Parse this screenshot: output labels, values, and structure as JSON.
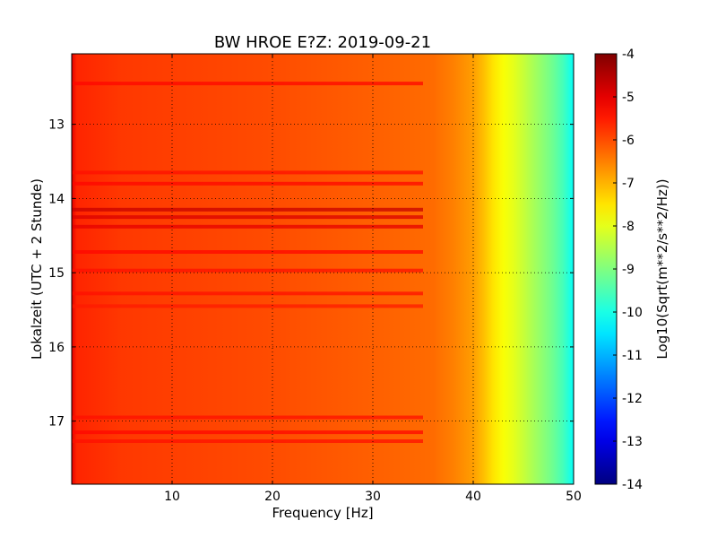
{
  "chart_data": {
    "type": "heatmap",
    "title": "BW HROE E?Z: 2019-09-21",
    "xlabel": "Frequency [Hz]",
    "ylabel": "Lokalzeit (UTC + 2 Stunde)",
    "xlim": [
      0,
      50
    ],
    "ylim": [
      12.05,
      17.85
    ],
    "y_inverted": true,
    "x_ticks": [
      10,
      20,
      30,
      40,
      50
    ],
    "y_ticks": [
      13,
      14,
      15,
      16,
      17
    ],
    "grid": true,
    "colorbar": {
      "label": "Log10(Sqrt(m**2/s**2/Hz))",
      "range": [
        -14,
        -4
      ],
      "ticks": [
        -4,
        -5,
        -6,
        -7,
        -8,
        -9,
        -10,
        -11,
        -12,
        -13,
        -14
      ],
      "colormap": "jet"
    },
    "frequency_profile": {
      "frequency": [
        0,
        0.5,
        5,
        20,
        36,
        38,
        40,
        41,
        42,
        43,
        44,
        45,
        46,
        47,
        48,
        49,
        50
      ],
      "value": [
        -5.0,
        -5.6,
        -5.8,
        -6.0,
        -6.3,
        -6.5,
        -6.8,
        -7.1,
        -7.5,
        -7.8,
        -8.0,
        -8.3,
        -8.6,
        -8.9,
        -9.2,
        -9.6,
        -10.2
      ]
    },
    "notable_bands": [
      {
        "time": 14.15,
        "value": -4.7
      },
      {
        "time": 14.25,
        "value": -4.9
      },
      {
        "time": 14.38,
        "value": -5.0
      },
      {
        "time": 12.45,
        "value": -5.3
      },
      {
        "time": 13.65,
        "value": -5.4
      },
      {
        "time": 13.8,
        "value": -5.3
      },
      {
        "time": 14.72,
        "value": -5.3
      },
      {
        "time": 14.97,
        "value": -5.4
      },
      {
        "time": 15.28,
        "value": -5.4
      },
      {
        "time": 15.45,
        "value": -5.5
      },
      {
        "time": 16.95,
        "value": -5.4
      },
      {
        "time": 17.15,
        "value": -5.3
      },
      {
        "time": 17.27,
        "value": -5.4
      }
    ]
  }
}
